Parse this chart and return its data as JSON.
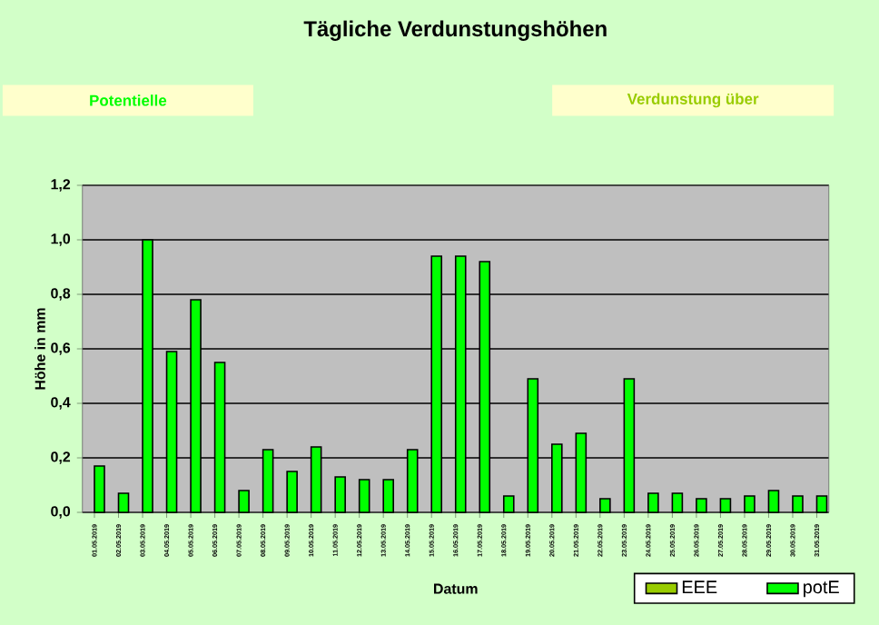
{
  "chart_data": {
    "type": "bar",
    "title": "Tägliche Verdunstungshöhen",
    "xlabel": "Datum",
    "ylabel": "Höhe in mm",
    "annotations": [
      "Potentielle",
      "Verdunstung über"
    ],
    "categories": [
      "01.05.2019",
      "02.05.2019",
      "03.05.2019",
      "04.05.2019",
      "05.05.2019",
      "06.05.2019",
      "07.05.2019",
      "08.05.2019",
      "09.05.2019",
      "10.05.2019",
      "11.05.2019",
      "12.05.2019",
      "13.05.2019",
      "14.05.2019",
      "15.05.2019",
      "16.05.2019",
      "17.05.2019",
      "18.05.2019",
      "19.05.2019",
      "20.05.2019",
      "21.05.2019",
      "22.05.2019",
      "23.05.2019",
      "24.05.2019",
      "25.05.2019",
      "26.05.2019",
      "27.05.2019",
      "28.05.2019",
      "29.05.2019",
      "30.05.2019",
      "31.05.2019"
    ],
    "series": [
      {
        "name": "EEE",
        "color": "#99cc00",
        "values": [
          null,
          null,
          null,
          null,
          null,
          null,
          null,
          null,
          null,
          null,
          null,
          null,
          null,
          null,
          null,
          null,
          null,
          null,
          null,
          null,
          null,
          null,
          null,
          null,
          null,
          null,
          null,
          null,
          null,
          null,
          null
        ]
      },
      {
        "name": "potE",
        "color": "#00ff00",
        "values": [
          0.17,
          0.07,
          1.0,
          0.59,
          0.78,
          0.55,
          0.08,
          0.23,
          0.15,
          0.24,
          0.13,
          0.12,
          0.12,
          0.23,
          0.94,
          0.94,
          0.92,
          0.06,
          0.49,
          0.25,
          0.29,
          0.05,
          0.49,
          0.07,
          0.07,
          0.05,
          0.05,
          0.06,
          0.08,
          0.06,
          0.06
        ]
      }
    ],
    "ylim": [
      0,
      1.2
    ],
    "yticks": [
      {
        "value": 0,
        "label": "0,0"
      },
      {
        "value": 0.2,
        "label": "0,2"
      },
      {
        "value": 0.4,
        "label": "0,4"
      },
      {
        "value": 0.6,
        "label": "0,6"
      },
      {
        "value": 0.8,
        "label": "0,8"
      },
      {
        "value": 1.0,
        "label": "1,0"
      },
      {
        "value": 1.2,
        "label": "1,2"
      }
    ],
    "grid": "y",
    "legend": "bottom right"
  }
}
